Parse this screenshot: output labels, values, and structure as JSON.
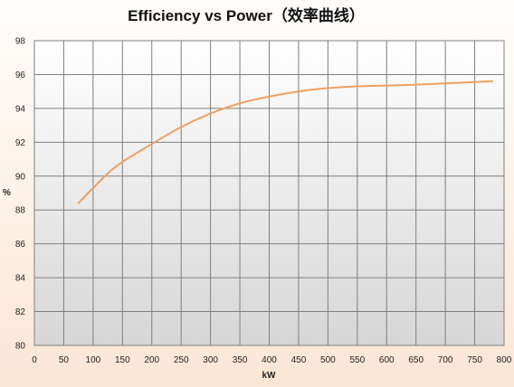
{
  "chart_data": {
    "type": "line",
    "title": "Efficiency vs Power（效率曲线）",
    "xlabel": "kW",
    "ylabel": "%",
    "xlim": [
      0,
      800
    ],
    "ylim": [
      80,
      98
    ],
    "x_ticks": [
      0,
      50,
      100,
      150,
      200,
      250,
      300,
      350,
      400,
      450,
      500,
      550,
      600,
      650,
      700,
      750,
      800
    ],
    "y_ticks": [
      80,
      82,
      84,
      86,
      88,
      90,
      92,
      94,
      96,
      98
    ],
    "grid": true,
    "legend": "none",
    "series": [
      {
        "color": "#f0a060",
        "x": [
          75,
          100,
          140,
          200,
          250,
          300,
          350,
          400,
          450,
          500,
          550,
          600,
          650,
          700,
          780
        ],
        "y": [
          88.4,
          89.3,
          90.6,
          91.9,
          92.9,
          93.7,
          94.3,
          94.7,
          95.0,
          95.2,
          95.3,
          95.35,
          95.4,
          95.48,
          95.6
        ]
      }
    ],
    "colors": {
      "plot_background_top": "#ffffff",
      "plot_background_bottom": "#d8d8d8",
      "grid": "#7f7f7f",
      "line": "#f0a060"
    }
  }
}
